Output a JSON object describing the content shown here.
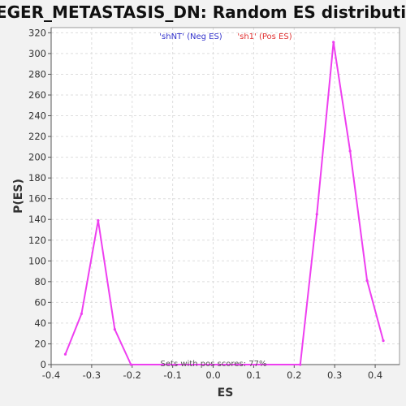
{
  "chart_data": {
    "type": "line",
    "title": "JAEGER_METASTASIS_DN: Random ES distribution",
    "xlabel": "ES",
    "ylabel": "P(ES)",
    "xlim": [
      -0.4,
      0.46
    ],
    "ylim": [
      0,
      325
    ],
    "xticks": [
      -0.4,
      -0.3,
      -0.2,
      -0.1,
      0.0,
      0.1,
      0.2,
      0.3,
      0.4
    ],
    "xtick_labels": [
      "-0.4",
      "-0.3",
      "-0.2",
      "-0.1",
      "0.0",
      "0.1",
      "0.2",
      "0.3",
      "0.4"
    ],
    "yticks": [
      0,
      20,
      40,
      60,
      80,
      100,
      120,
      140,
      160,
      180,
      200,
      220,
      240,
      260,
      280,
      300,
      320
    ],
    "grid": true,
    "series": [
      {
        "name": "",
        "color": "#ee3ff0",
        "x": [
          -0.365,
          -0.325,
          -0.284,
          -0.243,
          -0.203,
          0.215,
          0.256,
          0.297,
          0.338,
          0.38,
          0.42
        ],
        "y": [
          10,
          49,
          139,
          34,
          0,
          0,
          145,
          311,
          206,
          81,
          23
        ]
      }
    ],
    "legend": [
      {
        "label": "'shNT' (Neg ES)",
        "color": "#3333cc"
      },
      {
        "label": "'sh1' (Pos ES)",
        "color": "#e03030"
      }
    ],
    "legend_position": "top-center",
    "annotation": "Sets with pos scores: 77%"
  }
}
